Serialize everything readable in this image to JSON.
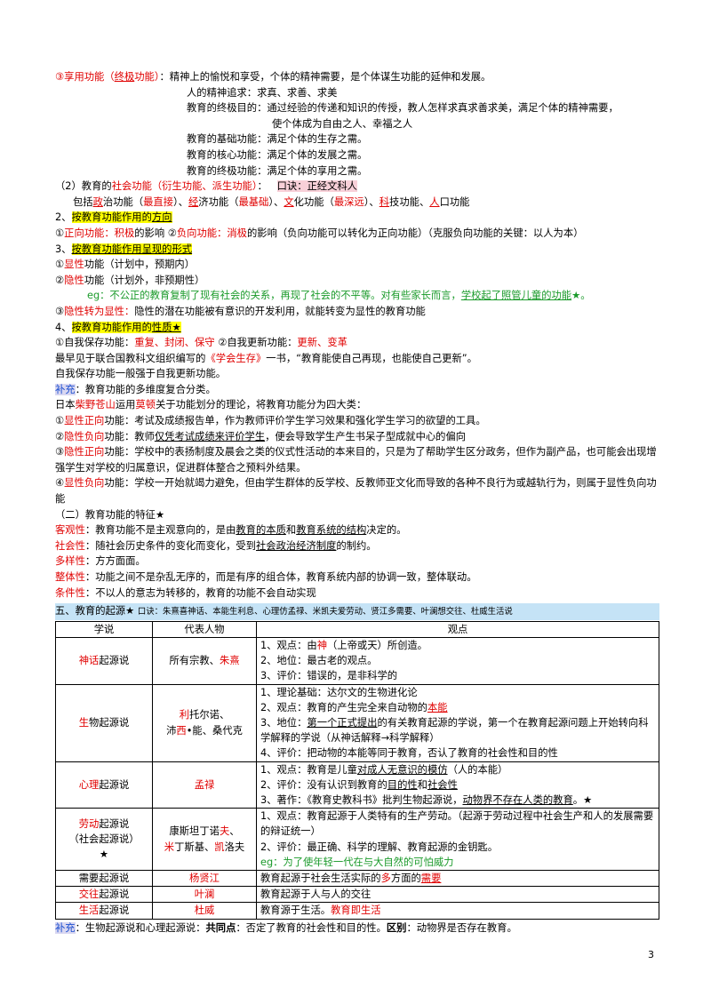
{
  "page_number": "3",
  "lines": {
    "l01": {
      "a": "③",
      "b": "享用功能（",
      "c": "终极",
      "d": "功能）",
      "e": "：精神上的愉悦和享受，个体的精神需要，是个体谋生功能的延伸和发展。"
    },
    "l02": "人的精神追求：求真、求善、求美",
    "l03": "教育的终极目的：通过经验的传递和知识的传授，教人怎样求真求善求美，满足个体的精神需要，",
    "l04": "使个体成为自由之人、幸福之人",
    "l05": "教育的基础功能：满足个体的生存之需。",
    "l06": "教育的核心功能：满足个体的发展之需。",
    "l07": "教育的终极功能：满足个体的享用之需。",
    "l08": {
      "a": "（2）教育的",
      "b": "社会功能（衍生功能、派生功能）",
      "c": "：",
      "d": "口诀：正经文科人"
    },
    "l09": {
      "a": "包括",
      "b": "政",
      "c": "治功能（",
      "d": "最直接",
      "e": "）、",
      "f": "经",
      "g": "济功能（",
      "h": "最基础",
      "i": "）、",
      "j": "文",
      "k": "化功能（",
      "l": "最深远",
      "m": "）、",
      "n": "科",
      "o": "技功能、",
      "p": "人",
      "q": "口功能"
    },
    "l10": {
      "a": "2、",
      "b": "按教育功能作用的",
      "c": "方向"
    },
    "l11": {
      "a": "①",
      "b": "正向功能：",
      "c": "积极",
      "d": "的影响 ②",
      "e": "负向功能：",
      "f": "消极",
      "g": "的影响（负向功能可以转化为正向功能）（克服负向功能的关键：以人为本）"
    },
    "l12": {
      "a": "3、",
      "b": "按教育功能作用呈现的形式"
    },
    "l13": {
      "a": "①",
      "b": "显性",
      "c": "功能（计划中，预期内）"
    },
    "l14": {
      "a": "②",
      "b": "隐性",
      "c": "功能（计划外，非预期性）"
    },
    "l15": {
      "a": "eg：不公正的教育复制了现有社会的关系，再现了社会的不平等。对有些家长而言，",
      "b": "学校起了照管儿童的功能",
      "c": "★。"
    },
    "l16": {
      "a": "③",
      "b": "隐性转为显性：",
      "c": "隐性的潜在功能被有意识的开发利用，就能转变为显性的教育功能"
    },
    "l17": {
      "a": "4、",
      "b": "按教育功能作用的",
      "c": "性质★"
    },
    "l18": {
      "a": "①自我保存功能：",
      "b": "重复、封闭、保守",
      "c": " ②自我更新功能：",
      "d": "更新、变革"
    },
    "l19": {
      "a": "最早见于联合国教科文组织编写的",
      "b": "《学会生存》",
      "c": "一书，“教育能使自己再现，也能使自己更新”。"
    },
    "l20": "自我保存功能一般强于自我更新功能。",
    "l21": {
      "a": "补充",
      "b": "：教育功能的多维度复合分类。"
    },
    "l22": {
      "a": "日本",
      "b": "柴野苍山",
      "c": "运用",
      "d": "莫顿",
      "e": "关于功能划分的理论，将教育功能分为四大类："
    },
    "l23": {
      "a": "①",
      "b": "显性正向",
      "c": "功能：考试及成绩报告单，作为教师评价学生学习效果和强化学生学习的欲望的工具。"
    },
    "l24": {
      "a": "②",
      "b": "隐性负向",
      "c": "功能：教师",
      "d": "仅凭考试成绩来评价学生",
      "e": "，便会导致学生产生书呆子型成就中心的偏向"
    },
    "l25": {
      "a": "③",
      "b": "隐性正向",
      "c": "功能：学校中的表扬制度及晨会之类的仪式性活动的本来目的，只是为了帮助学生区分政务，但作为副产品，也可能会出现增强学生对学校的归属意识，促进群体整合之预料外结果。"
    },
    "l26": {
      "a": "④",
      "b": "显性负向",
      "c": "功能：学校一开始就竭力避免，但由学生群体的反学校、反教师亚文化而导致的各种不良行为或越轨行为，则属于显性负向功能"
    },
    "l27": "（二）教育功能的特征★",
    "l28": {
      "a": "客观性",
      "b": "：教育功能不是主观意向的，是由",
      "c": "教育的本质",
      "d": "和",
      "e": "教育系统的结构",
      "f": "决定的。"
    },
    "l29": {
      "a": "社会性",
      "b": "：随社会历史条件的变化而变化，受到",
      "c": "社会政治经济制度",
      "d": "的制约。"
    },
    "l30": {
      "a": "多样性",
      "b": "：方方面面。"
    },
    "l31": {
      "a": "整体性",
      "b": "：功能之间不是杂乱无序的，而是有序的组合体，教育系统内部的协调一致，整体联动。"
    },
    "l32": {
      "a": "条件性",
      "b": "：不以人的意志为转移的，教育的功能不会自动实现"
    }
  },
  "section5": {
    "title": "五、教育的起源★",
    "mnemonic": "口诀：朱熹喜神话、本能生利息、心理仿孟禄、米凯夫爱劳动、贤江多需要、叶澜想交往、杜威生活说"
  },
  "table": {
    "headers": [
      "学说",
      "代表人物",
      "观点"
    ],
    "rows": {
      "r1": {
        "theory": {
          "a": "神话",
          "b": "起源说"
        },
        "people": {
          "a": "所有宗教、",
          "b": "朱熹"
        },
        "points": {
          "p1": {
            "a": "1、观点：由",
            "b": "神",
            "c": "（上帝或天）所创造。"
          },
          "p2": "2、地位：最古老的观点。",
          "p3": "3、评价：错误的，是非科学的"
        }
      },
      "r2": {
        "theory": {
          "a": "生",
          "b": "物起源说"
        },
        "people": {
          "a": "利",
          "b": "托尔诺、",
          "c": "沛",
          "d": "西",
          "e": "•能、桑代克"
        },
        "points": {
          "p1": "1、理论基础：达尔文的生物进化论",
          "p2": {
            "a": "2、观点：教育的产生完全来自动物的",
            "b": "本能"
          },
          "p3": {
            "a": "3、地位：",
            "b": "第一个正式提出",
            "c": "的有关教育起源的学说，第一个在教育起源问题上开始转向科学解释的学说（从神话解释→科学解释）"
          },
          "p4": "4、评价：把动物的本能等同于教育，否认了教育的社会性和目的性"
        }
      },
      "r3": {
        "theory": {
          "a": "心理",
          "b": "起源说"
        },
        "people": "孟禄",
        "points": {
          "p1": {
            "a": "1、观点：教育是儿童",
            "b": "对成人无意识的模仿",
            "c": "（人的本能）"
          },
          "p2": {
            "a": "2、评价：没有认识到教育的",
            "b": "目的性",
            "c": "和",
            "d": "社会性"
          },
          "p3": {
            "a": "3、著作：《教育史教科书》批判生物起源说，",
            "b": "动物界不存在人类的教育",
            "c": "。★"
          }
        }
      },
      "r4": {
        "theory": {
          "a": "劳动",
          "b": "起源说",
          "c": "（社会起源说）",
          "d": "★"
        },
        "people": {
          "a": "康斯坦丁诺",
          "b": "夫",
          "c": "、",
          "d": "米",
          "e": "丁斯基、",
          "f": "凯",
          "g": "洛夫"
        },
        "points": {
          "p1": "1、观点：教育起源于人类特有的生产劳动。（起源于劳动过程中社会生产和人的发展需要的辩证统一）",
          "p2": "2、评价：最正确、科学的理解、教育起源的金钥匙。",
          "p3": "eg：为了使年轻一代在与大自然的可怕威力"
        }
      },
      "r5": {
        "theory": "需要起源说",
        "people": "杨贤江",
        "points": {
          "a": "教育起源于社会生活实际的",
          "b": "多",
          "c": "方面的",
          "d": "需要"
        }
      },
      "r6": {
        "theory": {
          "a": "交往",
          "b": "起源说"
        },
        "people": "叶澜",
        "points": "教育起源于人与人的交往"
      },
      "r7": {
        "theory": {
          "a": "生活",
          "b": "起源说"
        },
        "people": "杜威",
        "points": {
          "a": "教育源于生活。",
          "b": "教育即生活"
        }
      }
    }
  },
  "footer_note": {
    "a": "补充",
    "b": "：生物起源说和心理起源说：",
    "c": "共同点",
    "d": "：否定了教育的社会性和目的性。",
    "e": "区别",
    "f": "：动物界是否存在教育。"
  }
}
